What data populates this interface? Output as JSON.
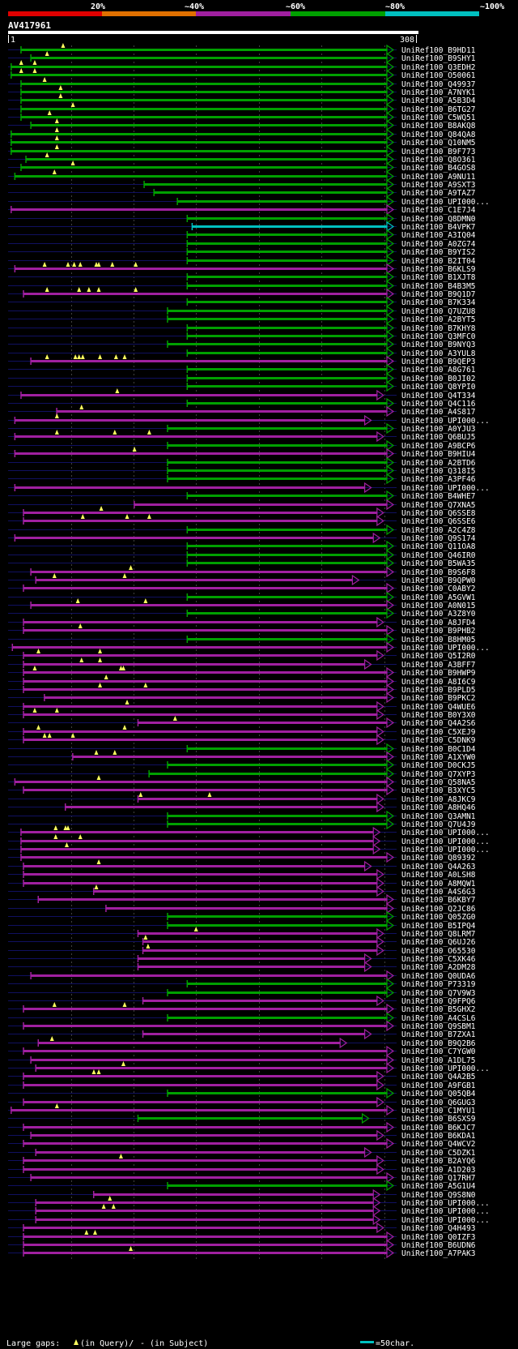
{
  "legend": {
    "percent_labels": [
      "20%",
      "~40%",
      "~60%",
      "~80%",
      "~100%"
    ],
    "colors": [
      "#e00000",
      "#e07000",
      "#a020a0",
      "#00a000",
      "#00c0c0"
    ]
  },
  "query": {
    "name": "AV417961",
    "start_label": "1",
    "end_label": "308",
    "length": 308
  },
  "colors": {
    "high": "#00a000",
    "mid": "#a020a0",
    "row_line": "#101060",
    "gap_marker": "#ffff60"
  },
  "footer": {
    "gap_prefix": "Large gaps: ",
    "gap_query": "(in Query)/",
    "gap_subject": "- (in Subject)",
    "scale_label": "=50char."
  },
  "hits": [
    {
      "id": "UniRef100_B9HD11",
      "s": 11,
      "e": 308,
      "c": "g",
      "gaps": [
        45
      ]
    },
    {
      "id": "UniRef100_B9SHY1",
      "s": 19,
      "e": 308,
      "c": "g",
      "gaps": [
        32
      ]
    },
    {
      "id": "UniRef100_Q3EDH2",
      "s": 3,
      "e": 308,
      "c": "g",
      "gaps": [
        11,
        22
      ]
    },
    {
      "id": "UniRef100_O50061",
      "s": 3,
      "e": 308,
      "c": "g",
      "gaps": [
        11,
        22
      ]
    },
    {
      "id": "UniRef100_Q49937",
      "s": 11,
      "e": 308,
      "c": "g",
      "gaps": [
        30
      ]
    },
    {
      "id": "UniRef100_A7NYK1",
      "s": 11,
      "e": 308,
      "c": "g",
      "gaps": [
        43
      ]
    },
    {
      "id": "UniRef100_A5B3D4",
      "s": 11,
      "e": 308,
      "c": "g",
      "gaps": [
        43
      ]
    },
    {
      "id": "UniRef100_B6TG27",
      "s": 11,
      "e": 308,
      "c": "g",
      "gaps": [
        53
      ]
    },
    {
      "id": "UniRef100_C5WQ51",
      "s": 11,
      "e": 308,
      "c": "g",
      "gaps": [
        34
      ]
    },
    {
      "id": "UniRef100_B8AKQ8",
      "s": 19,
      "e": 308,
      "c": "g",
      "gaps": [
        40
      ]
    },
    {
      "id": "UniRef100_Q84QA8",
      "s": 3,
      "e": 308,
      "c": "g",
      "gaps": [
        40
      ]
    },
    {
      "id": "UniRef100_Q10NM5",
      "s": 3,
      "e": 308,
      "c": "g",
      "gaps": [
        40
      ]
    },
    {
      "id": "UniRef100_B9F773",
      "s": 3,
      "e": 308,
      "c": "g",
      "gaps": [
        40
      ]
    },
    {
      "id": "UniRef100_Q8O361",
      "s": 15,
      "e": 308,
      "c": "g",
      "gaps": [
        32
      ]
    },
    {
      "id": "UniRef100_B4GOS8",
      "s": 11,
      "e": 308,
      "c": "g",
      "gaps": [
        53
      ]
    },
    {
      "id": "UniRef100_A9NU11",
      "s": 6,
      "e": 308,
      "c": "g",
      "gaps": [
        38
      ]
    },
    {
      "id": "UniRef100_A9SXT3",
      "s": 111,
      "e": 308,
      "c": "g",
      "gaps": []
    },
    {
      "id": "UniRef100_A9TAZ7",
      "s": 119,
      "e": 308,
      "c": "g",
      "gaps": []
    },
    {
      "id": "UniRef100_UPI000...",
      "s": 138,
      "e": 308,
      "c": "g",
      "gaps": []
    },
    {
      "id": "UniRef100_C1E7J4",
      "s": 3,
      "e": 308,
      "c": "m",
      "gaps": []
    },
    {
      "id": "UniRef100_Q8DMN0",
      "s": 146,
      "e": 308,
      "c": "g",
      "gaps": []
    },
    {
      "id": "UniRef100_B4VPK7",
      "s": 150,
      "e": 308,
      "c": "c",
      "gaps": []
    },
    {
      "id": "UniRef100_A3IQ04",
      "s": 146,
      "e": 308,
      "c": "g",
      "gaps": []
    },
    {
      "id": "UniRef100_A0ZG74",
      "s": 146,
      "e": 308,
      "c": "g",
      "gaps": []
    },
    {
      "id": "UniRef100_B9YIS2",
      "s": 146,
      "e": 308,
      "c": "g",
      "gaps": []
    },
    {
      "id": "UniRef100_B2IT04",
      "s": 146,
      "e": 308,
      "c": "g",
      "gaps": []
    },
    {
      "id": "UniRef100_B6KLS9",
      "s": 6,
      "e": 308,
      "c": "m",
      "gaps": [
        30,
        49,
        54,
        59,
        72,
        74,
        85,
        104
      ]
    },
    {
      "id": "UniRef100_B1XJT8",
      "s": 146,
      "e": 308,
      "c": "g",
      "gaps": []
    },
    {
      "id": "UniRef100_B4B3M5",
      "s": 146,
      "e": 308,
      "c": "g",
      "gaps": []
    },
    {
      "id": "UniRef100_B9Q1D7",
      "s": 13,
      "e": 308,
      "c": "m",
      "gaps": [
        32,
        58,
        66,
        74,
        104
      ]
    },
    {
      "id": "UniRef100_B7K334",
      "s": 146,
      "e": 308,
      "c": "g",
      "gaps": []
    },
    {
      "id": "UniRef100_Q7UZU8",
      "s": 130,
      "e": 308,
      "c": "g",
      "gaps": []
    },
    {
      "id": "UniRef100_A2BYT5",
      "s": 130,
      "e": 308,
      "c": "g",
      "gaps": []
    },
    {
      "id": "UniRef100_B7KHY8",
      "s": 146,
      "e": 308,
      "c": "g",
      "gaps": []
    },
    {
      "id": "UniRef100_Q3MFC0",
      "s": 146,
      "e": 308,
      "c": "g",
      "gaps": []
    },
    {
      "id": "UniRef100_B9NYQ3",
      "s": 130,
      "e": 308,
      "c": "g",
      "gaps": []
    },
    {
      "id": "UniRef100_A3YUL8",
      "s": 146,
      "e": 308,
      "c": "g",
      "gaps": []
    },
    {
      "id": "UniRef100_B9QEP3",
      "s": 19,
      "e": 308,
      "c": "m",
      "gaps": [
        32,
        55,
        58,
        61,
        75,
        88,
        95
      ]
    },
    {
      "id": "UniRef100_A8G761",
      "s": 146,
      "e": 308,
      "c": "g",
      "gaps": []
    },
    {
      "id": "UniRef100_B0JI02",
      "s": 146,
      "e": 308,
      "c": "g",
      "gaps": []
    },
    {
      "id": "UniRef100_Q8YPI0",
      "s": 146,
      "e": 308,
      "c": "g",
      "gaps": []
    },
    {
      "id": "UniRef100_Q4T334",
      "s": 11,
      "e": 300,
      "c": "m",
      "gaps": [
        89
      ]
    },
    {
      "id": "UniRef100_Q4C116",
      "s": 146,
      "e": 308,
      "c": "g",
      "gaps": []
    },
    {
      "id": "UniRef100_A4S817",
      "s": 40,
      "e": 308,
      "c": "m",
      "gaps": [
        60
      ]
    },
    {
      "id": "UniRef100_UPI000...",
      "s": 6,
      "e": 290,
      "c": "m",
      "gaps": [
        40
      ]
    },
    {
      "id": "UniRef100_A0YJU3",
      "s": 130,
      "e": 308,
      "c": "g",
      "gaps": []
    },
    {
      "id": "UniRef100_Q6BUJ5",
      "s": 6,
      "e": 300,
      "c": "m",
      "gaps": [
        40,
        87,
        115
      ]
    },
    {
      "id": "UniRef100_A9BCP6",
      "s": 130,
      "e": 308,
      "c": "g",
      "gaps": []
    },
    {
      "id": "UniRef100_B9HIU4",
      "s": 6,
      "e": 308,
      "c": "m",
      "gaps": [
        103
      ]
    },
    {
      "id": "UniRef100_A2BTD6",
      "s": 130,
      "e": 308,
      "c": "g",
      "gaps": []
    },
    {
      "id": "UniRef100_Q318I5",
      "s": 130,
      "e": 308,
      "c": "g",
      "gaps": []
    },
    {
      "id": "UniRef100_A3PF46",
      "s": 130,
      "e": 308,
      "c": "g",
      "gaps": []
    },
    {
      "id": "UniRef100_UPI000...",
      "s": 6,
      "e": 290,
      "c": "m",
      "gaps": []
    },
    {
      "id": "UniRef100_B4WHE7",
      "s": 146,
      "e": 308,
      "c": "g",
      "gaps": []
    },
    {
      "id": "UniRef100_Q7XNA5",
      "s": 103,
      "e": 308,
      "c": "m",
      "gaps": []
    },
    {
      "id": "UniRef100_Q6SSE8",
      "s": 13,
      "e": 300,
      "c": "m",
      "gaps": [
        76
      ]
    },
    {
      "id": "UniRef100_Q6SSE6",
      "s": 13,
      "e": 300,
      "c": "m",
      "gaps": [
        61,
        97,
        115
      ]
    },
    {
      "id": "UniRef100_A2C4Z8",
      "s": 146,
      "e": 308,
      "c": "g",
      "gaps": []
    },
    {
      "id": "UniRef100_Q9S174",
      "s": 6,
      "e": 297,
      "c": "m",
      "gaps": []
    },
    {
      "id": "UniRef100_Q11OA8",
      "s": 146,
      "e": 308,
      "c": "g",
      "gaps": []
    },
    {
      "id": "UniRef100_Q46IR0",
      "s": 146,
      "e": 308,
      "c": "g",
      "gaps": []
    },
    {
      "id": "UniRef100_B5WA35",
      "s": 146,
      "e": 308,
      "c": "g",
      "gaps": []
    },
    {
      "id": "UniRef100_B9S6F8",
      "s": 19,
      "e": 308,
      "c": "m",
      "gaps": [
        100
      ]
    },
    {
      "id": "UniRef100_B9QPW0",
      "s": 23,
      "e": 280,
      "c": "m",
      "gaps": [
        38,
        95
      ]
    },
    {
      "id": "UniRef100_C0ABY2",
      "s": 13,
      "e": 308,
      "c": "m",
      "gaps": []
    },
    {
      "id": "UniRef100_A5GVW1",
      "s": 146,
      "e": 308,
      "c": "g",
      "gaps": []
    },
    {
      "id": "UniRef100_A0N015",
      "s": 19,
      "e": 308,
      "c": "m",
      "gaps": [
        57,
        112
      ]
    },
    {
      "id": "UniRef100_A3Z8Y0",
      "s": 146,
      "e": 308,
      "c": "g",
      "gaps": []
    },
    {
      "id": "UniRef100_A8JFD4",
      "s": 13,
      "e": 300,
      "c": "m",
      "gaps": []
    },
    {
      "id": "UniRef100_B9PHB2",
      "s": 13,
      "e": 308,
      "c": "m",
      "gaps": [
        59
      ]
    },
    {
      "id": "UniRef100_B8HM05",
      "s": 146,
      "e": 308,
      "c": "g",
      "gaps": []
    },
    {
      "id": "UniRef100_UPI000...",
      "s": 4,
      "e": 308,
      "c": "m",
      "gaps": []
    },
    {
      "id": "UniRef100_Q5I2R0",
      "s": 13,
      "e": 300,
      "c": "m",
      "gaps": [
        25,
        75
      ]
    },
    {
      "id": "UniRef100_A3BFF7",
      "s": 13,
      "e": 290,
      "c": "m",
      "gaps": [
        60,
        75
      ]
    },
    {
      "id": "UniRef100_B9HWP9",
      "s": 13,
      "e": 308,
      "c": "m",
      "gaps": [
        22,
        92,
        94
      ]
    },
    {
      "id": "UniRef100_A8I6C9",
      "s": 13,
      "e": 308,
      "c": "m",
      "gaps": [
        80
      ]
    },
    {
      "id": "UniRef100_B9PLD5",
      "s": 13,
      "e": 308,
      "c": "m",
      "gaps": [
        75,
        112
      ]
    },
    {
      "id": "UniRef100_B9PKC2",
      "s": 30,
      "e": 308,
      "c": "m",
      "gaps": []
    },
    {
      "id": "UniRef100_Q4WUE6",
      "s": 13,
      "e": 300,
      "c": "m",
      "gaps": [
        97
      ]
    },
    {
      "id": "UniRef100_B0Y3X0",
      "s": 13,
      "e": 300,
      "c": "m",
      "gaps": [
        22,
        40
      ]
    },
    {
      "id": "UniRef100_Q4A2S6",
      "s": 106,
      "e": 308,
      "c": "m",
      "gaps": [
        136
      ]
    },
    {
      "id": "UniRef100_C5XEJ9",
      "s": 13,
      "e": 300,
      "c": "m",
      "gaps": [
        25,
        95
      ]
    },
    {
      "id": "UniRef100_C5DNK9",
      "s": 13,
      "e": 300,
      "c": "m",
      "gaps": [
        30,
        34,
        53
      ]
    },
    {
      "id": "UniRef100_B0C1D4",
      "s": 146,
      "e": 308,
      "c": "g",
      "gaps": []
    },
    {
      "id": "UniRef100_A1XYW0",
      "s": 53,
      "e": 308,
      "c": "m",
      "gaps": [
        72,
        87
      ]
    },
    {
      "id": "UniRef100_D0CKJ5",
      "s": 130,
      "e": 308,
      "c": "g",
      "gaps": []
    },
    {
      "id": "UniRef100_Q7XYP3",
      "s": 115,
      "e": 308,
      "c": "g",
      "gaps": []
    },
    {
      "id": "UniRef100_Q58NA5",
      "s": 6,
      "e": 308,
      "c": "m",
      "gaps": [
        74
      ]
    },
    {
      "id": "UniRef100_B3XYC5",
      "s": 13,
      "e": 308,
      "c": "m",
      "gaps": []
    },
    {
      "id": "UniRef100_A8JKC9",
      "s": 106,
      "e": 300,
      "c": "m",
      "gaps": [
        108,
        164
      ]
    },
    {
      "id": "UniRef100_A8HQ46",
      "s": 47,
      "e": 300,
      "c": "m",
      "gaps": []
    },
    {
      "id": "UniRef100_Q3AMN1",
      "s": 130,
      "e": 308,
      "c": "g",
      "gaps": []
    },
    {
      "id": "UniRef100_Q7U4J9",
      "s": 130,
      "e": 308,
      "c": "g",
      "gaps": []
    },
    {
      "id": "UniRef100_UPI000...",
      "s": 11,
      "e": 297,
      "c": "m",
      "gaps": [
        39,
        47,
        49
      ]
    },
    {
      "id": "UniRef100_UPI000...",
      "s": 11,
      "e": 297,
      "c": "m",
      "gaps": [
        39,
        59
      ]
    },
    {
      "id": "UniRef100_UPI000...",
      "s": 11,
      "e": 297,
      "c": "m",
      "gaps": [
        48
      ]
    },
    {
      "id": "UniRef100_Q89392",
      "s": 11,
      "e": 308,
      "c": "m",
      "gaps": []
    },
    {
      "id": "UniRef100_Q4A263",
      "s": 13,
      "e": 290,
      "c": "m",
      "gaps": [
        74
      ]
    },
    {
      "id": "UniRef100_A0LSH8",
      "s": 13,
      "e": 300,
      "c": "m",
      "gaps": []
    },
    {
      "id": "UniRef100_A8MQW1",
      "s": 13,
      "e": 300,
      "c": "m",
      "gaps": []
    },
    {
      "id": "UniRef100_A4S6G3",
      "s": 70,
      "e": 300,
      "c": "m",
      "gaps": [
        72
      ]
    },
    {
      "id": "UniRef100_B6KBY7",
      "s": 25,
      "e": 308,
      "c": "m",
      "gaps": []
    },
    {
      "id": "UniRef100_Q2JC86",
      "s": 80,
      "e": 308,
      "c": "m",
      "gaps": []
    },
    {
      "id": "UniRef100_Q05ZG0",
      "s": 130,
      "e": 308,
      "c": "g",
      "gaps": []
    },
    {
      "id": "UniRef100_B5IPQ4",
      "s": 130,
      "e": 308,
      "c": "g",
      "gaps": []
    },
    {
      "id": "UniRef100_Q8LRM7",
      "s": 106,
      "e": 300,
      "c": "m",
      "gaps": [
        153
      ]
    },
    {
      "id": "UniRef100_Q6UJ26",
      "s": 110,
      "e": 300,
      "c": "m",
      "gaps": [
        112
      ]
    },
    {
      "id": "UniRef100_O65530",
      "s": 110,
      "e": 300,
      "c": "m",
      "gaps": [
        114
      ]
    },
    {
      "id": "UniRef100_C5XK46",
      "s": 106,
      "e": 290,
      "c": "m",
      "gaps": []
    },
    {
      "id": "UniRef100_A2DM28",
      "s": 106,
      "e": 290,
      "c": "m",
      "gaps": []
    },
    {
      "id": "UniRef100_Q0UDA6",
      "s": 19,
      "e": 308,
      "c": "m",
      "gaps": []
    },
    {
      "id": "UniRef100_P73319",
      "s": 146,
      "e": 308,
      "c": "g",
      "gaps": []
    },
    {
      "id": "UniRef100_Q7V9W3",
      "s": 130,
      "e": 308,
      "c": "g",
      "gaps": []
    },
    {
      "id": "UniRef100_Q9FPQ6",
      "s": 110,
      "e": 300,
      "c": "m",
      "gaps": []
    },
    {
      "id": "UniRef100_B5GHX2",
      "s": 13,
      "e": 308,
      "c": "m",
      "gaps": [
        38,
        95
      ]
    },
    {
      "id": "UniRef100_A4CSL6",
      "s": 130,
      "e": 308,
      "c": "g",
      "gaps": []
    },
    {
      "id": "UniRef100_Q9SBM1",
      "s": 13,
      "e": 308,
      "c": "m",
      "gaps": []
    },
    {
      "id": "UniRef100_B7ZXA1",
      "s": 110,
      "e": 290,
      "c": "m",
      "gaps": []
    },
    {
      "id": "UniRef100_B9Q2B6",
      "s": 25,
      "e": 270,
      "c": "m",
      "gaps": [
        36
      ]
    },
    {
      "id": "UniRef100_C7YGW0",
      "s": 13,
      "e": 308,
      "c": "m",
      "gaps": []
    },
    {
      "id": "UniRef100_A1DL75",
      "s": 19,
      "e": 308,
      "c": "m",
      "gaps": []
    },
    {
      "id": "UniRef100_UPI000...",
      "s": 23,
      "e": 308,
      "c": "m",
      "gaps": [
        94
      ]
    },
    {
      "id": "UniRef100_Q4A2B5",
      "s": 13,
      "e": 300,
      "c": "m",
      "gaps": [
        70,
        74
      ]
    },
    {
      "id": "UniRef100_A9FGB1",
      "s": 13,
      "e": 300,
      "c": "m",
      "gaps": []
    },
    {
      "id": "UniRef100_Q05QB4",
      "s": 130,
      "e": 308,
      "c": "g",
      "gaps": []
    },
    {
      "id": "UniRef100_Q6GUG3",
      "s": 13,
      "e": 300,
      "c": "m",
      "gaps": []
    },
    {
      "id": "UniRef100_C1MYU1",
      "s": 3,
      "e": 308,
      "c": "m",
      "gaps": [
        40
      ]
    },
    {
      "id": "UniRef100_B6SXS9",
      "s": 106,
      "e": 288,
      "c": "g",
      "gaps": []
    },
    {
      "id": "UniRef100_B6KJC7",
      "s": 13,
      "e": 308,
      "c": "m",
      "gaps": []
    },
    {
      "id": "UniRef100_B6KDA1",
      "s": 19,
      "e": 300,
      "c": "m",
      "gaps": []
    },
    {
      "id": "UniRef100_Q4WCV2",
      "s": 13,
      "e": 308,
      "c": "m",
      "gaps": []
    },
    {
      "id": "UniRef100_C5DZK1",
      "s": 23,
      "e": 290,
      "c": "m",
      "gaps": []
    },
    {
      "id": "UniRef100_B2AYQ6",
      "s": 13,
      "e": 300,
      "c": "m",
      "gaps": [
        92
      ]
    },
    {
      "id": "UniRef100_A1D203",
      "s": 13,
      "e": 300,
      "c": "m",
      "gaps": []
    },
    {
      "id": "UniRef100_Q17RH7",
      "s": 19,
      "e": 308,
      "c": "m",
      "gaps": []
    },
    {
      "id": "UniRef100_A5G1U4",
      "s": 130,
      "e": 308,
      "c": "g",
      "gaps": []
    },
    {
      "id": "UniRef100_Q9S8N0",
      "s": 70,
      "e": 297,
      "c": "m",
      "gaps": []
    },
    {
      "id": "UniRef100_UPI000...",
      "s": 23,
      "e": 297,
      "c": "m",
      "gaps": [
        83
      ]
    },
    {
      "id": "UniRef100_UPI000...",
      "s": 23,
      "e": 297,
      "c": "m",
      "gaps": [
        78,
        86
      ]
    },
    {
      "id": "UniRef100_UPI000...",
      "s": 23,
      "e": 297,
      "c": "m",
      "gaps": []
    },
    {
      "id": "UniRef100_Q4H493",
      "s": 13,
      "e": 300,
      "c": "m",
      "gaps": []
    },
    {
      "id": "UniRef100_Q0IZF3",
      "s": 13,
      "e": 308,
      "c": "m",
      "gaps": [
        64,
        71
      ]
    },
    {
      "id": "UniRef100_B6UDN6",
      "s": 13,
      "e": 308,
      "c": "m",
      "gaps": []
    },
    {
      "id": "UniRef100_A7PAK3",
      "s": 13,
      "e": 308,
      "c": "m",
      "gaps": [
        100
      ]
    }
  ]
}
